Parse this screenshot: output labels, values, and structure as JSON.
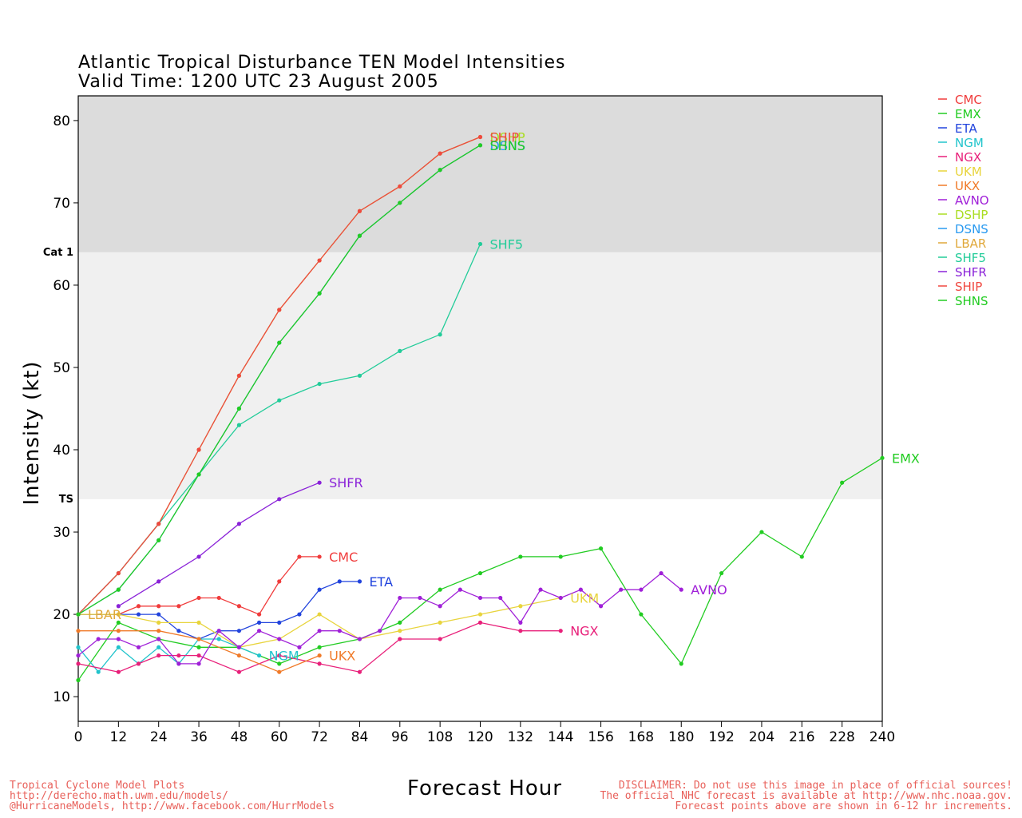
{
  "chart_data": {
    "type": "line",
    "title": "Atlantic Tropical Disturbance TEN Model Intensities",
    "subtitle": "Valid Time: 1200 UTC 23 August 2005",
    "xlabel": "Forecast Hour",
    "ylabel": "Intensity (kt)",
    "xlim": [
      0,
      240
    ],
    "ylim": [
      7,
      83
    ],
    "xticks": [
      0,
      12,
      24,
      36,
      48,
      60,
      72,
      84,
      96,
      108,
      120,
      132,
      144,
      156,
      168,
      180,
      192,
      204,
      216,
      228,
      240
    ],
    "yticks": [
      10,
      20,
      30,
      40,
      50,
      60,
      70,
      80
    ],
    "bands": [
      {
        "label": "TS",
        "min": 34,
        "max": 64,
        "color": "#f0f0f0"
      },
      {
        "label": "Cat 1",
        "min": 64,
        "max": 83,
        "color": "#dcdcdc"
      }
    ],
    "legend_position": "right",
    "series": [
      {
        "name": "CMC",
        "color": "#f03c3c",
        "end_label": "CMC",
        "x": [
          0,
          12,
          18,
          24,
          30,
          36,
          42,
          48,
          54,
          60,
          66,
          72
        ],
        "y": [
          20,
          20,
          21,
          21,
          21,
          22,
          22,
          21,
          20,
          24,
          27,
          27
        ]
      },
      {
        "name": "EMX",
        "color": "#22cc22",
        "end_label": "EMX",
        "x": [
          0,
          12,
          24,
          36,
          48,
          60,
          72,
          84,
          96,
          108,
          120,
          132,
          144,
          156,
          168,
          180,
          192,
          204,
          216,
          228,
          240
        ],
        "y": [
          12,
          19,
          17,
          16,
          16,
          14,
          16,
          17,
          19,
          23,
          25,
          27,
          27,
          28,
          20,
          14,
          25,
          30,
          27,
          36,
          39
        ]
      },
      {
        "name": "ETA",
        "color": "#2244dd",
        "end_label": "ETA",
        "x": [
          0,
          12,
          18,
          24,
          30,
          36,
          42,
          48,
          54,
          60,
          66,
          72,
          78,
          84
        ],
        "y": [
          20,
          20,
          20,
          20,
          18,
          17,
          18,
          18,
          19,
          19,
          20,
          23,
          24,
          24
        ]
      },
      {
        "name": "NGM",
        "color": "#22c4cc",
        "end_label": "NGM",
        "x": [
          0,
          6,
          12,
          18,
          24,
          30,
          36,
          42,
          48,
          54
        ],
        "y": [
          16,
          13,
          16,
          14,
          16,
          14,
          17,
          17,
          16,
          15
        ]
      },
      {
        "name": "NGX",
        "color": "#e8207a",
        "end_label": "NGX",
        "x": [
          0,
          12,
          18,
          24,
          30,
          36,
          48,
          60,
          72,
          84,
          96,
          108,
          120,
          132,
          144
        ],
        "y": [
          14,
          13,
          14,
          15,
          15,
          15,
          13,
          15,
          14,
          13,
          17,
          17,
          19,
          18,
          18
        ]
      },
      {
        "name": "UKM",
        "color": "#e8d43c",
        "end_label": "UKM",
        "x": [
          0,
          12,
          24,
          36,
          48,
          60,
          72,
          84,
          96,
          108,
          120,
          132,
          144
        ],
        "y": [
          20,
          20,
          19,
          19,
          16,
          17,
          20,
          17,
          18,
          19,
          20,
          21,
          22
        ]
      },
      {
        "name": "UKX",
        "color": "#f07a28",
        "end_label": "UKX",
        "x": [
          0,
          12,
          24,
          36,
          48,
          60,
          72
        ],
        "y": [
          18,
          18,
          18,
          17,
          15,
          13,
          15
        ]
      },
      {
        "name": "AVNO",
        "color": "#a020d8",
        "end_label": "AVNO",
        "x": [
          0,
          6,
          12,
          18,
          24,
          30,
          36,
          42,
          48,
          54,
          60,
          66,
          72,
          78,
          84,
          90,
          96,
          102,
          108,
          114,
          120,
          126,
          132,
          138,
          144,
          150,
          156,
          162,
          168,
          174,
          180
        ],
        "y": [
          15,
          17,
          17,
          16,
          17,
          14,
          14,
          18,
          16,
          18,
          17,
          16,
          18,
          18,
          17,
          18,
          22,
          22,
          21,
          23,
          22,
          22,
          19,
          23,
          22,
          23,
          21,
          23,
          23,
          25,
          23
        ]
      },
      {
        "name": "DSHP",
        "color": "#aadd22",
        "end_label": "DSHP",
        "x": [
          0,
          12,
          24,
          36,
          48,
          60,
          72,
          84,
          96,
          108,
          120
        ],
        "y": [
          20,
          25,
          31,
          40,
          49,
          57,
          63,
          69,
          72,
          76,
          78
        ]
      },
      {
        "name": "DSNS",
        "color": "#2a9af0",
        "end_label": "DSNS",
        "x": [
          0,
          12,
          24,
          36,
          48,
          60,
          72,
          84,
          96,
          108,
          120
        ],
        "y": [
          20,
          23,
          29,
          37,
          45,
          53,
          59,
          66,
          70,
          74,
          77
        ]
      },
      {
        "name": "LBAR",
        "color": "#e0a83a",
        "end_label": "LBAR",
        "x": [
          0
        ],
        "y": [
          20
        ]
      },
      {
        "name": "SHF5",
        "color": "#22cc99",
        "end_label": "SHF5",
        "x": [
          0,
          12,
          24,
          36,
          48,
          60,
          72,
          84,
          96,
          108,
          120
        ],
        "y": [
          20,
          25,
          31,
          37,
          43,
          46,
          48,
          49,
          52,
          54,
          65
        ]
      },
      {
        "name": "SHFR",
        "color": "#8a22d8",
        "end_label": "SHFR",
        "x": [
          12,
          24,
          36,
          48,
          60,
          72
        ],
        "y": [
          21,
          24,
          27,
          31,
          34,
          36
        ]
      },
      {
        "name": "SHIP",
        "color": "#f04840",
        "end_label": "SHIP",
        "x": [
          0,
          12,
          24,
          36,
          48,
          60,
          72,
          84,
          96,
          108,
          120
        ],
        "y": [
          20,
          25,
          31,
          40,
          49,
          57,
          63,
          69,
          72,
          76,
          78
        ]
      },
      {
        "name": "SHNS",
        "color": "#22cc22",
        "end_label": "SHNS",
        "x": [
          0,
          12,
          24,
          36,
          48,
          60,
          72,
          84,
          96,
          108,
          120
        ],
        "y": [
          20,
          23,
          29,
          37,
          45,
          53,
          59,
          66,
          70,
          74,
          77
        ]
      }
    ]
  },
  "footer": {
    "left_line1": "Tropical Cyclone Model Plots",
    "left_line2": "http://derecho.math.uwm.edu/models/",
    "left_line3": "@HurricaneModels, http://www.facebook.com/HurrModels",
    "right_line1": "DISCLAIMER: Do not use this image in place of official sources!",
    "right_line2": "The official NHC forecast is available at http://www.nhc.noaa.gov.",
    "right_line3": "Forecast points above are shown in 6-12 hr increments."
  }
}
